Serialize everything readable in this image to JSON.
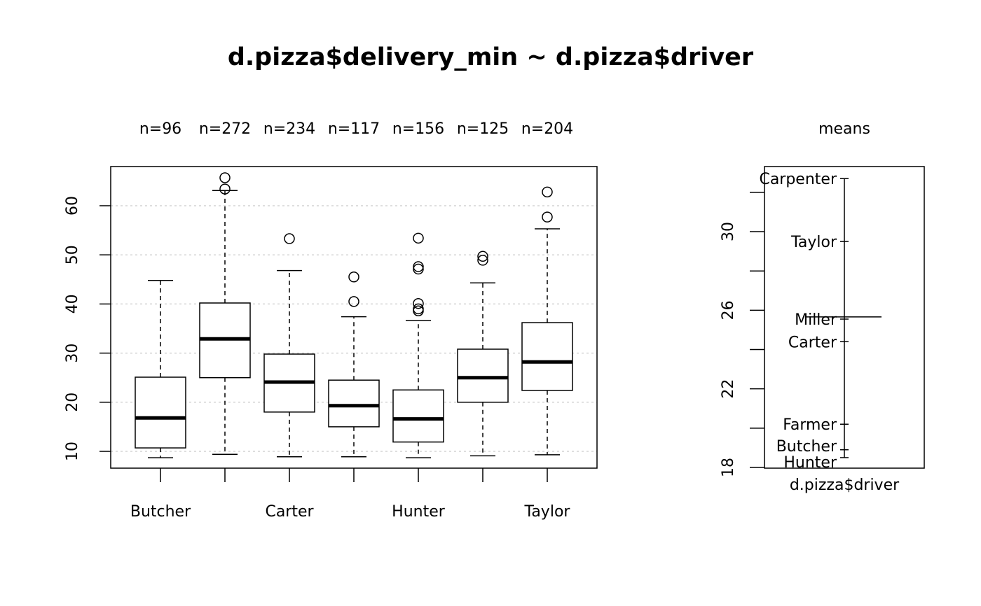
{
  "chart_data": [
    {
      "type": "boxplot",
      "title": "d.pizza$delivery_min ~ d.pizza$driver",
      "xlabel": "",
      "ylabel": "",
      "ylim": [
        6.5,
        68
      ],
      "yticks": [
        10,
        20,
        30,
        40,
        50,
        60
      ],
      "grid": "horizontal dotted",
      "categories": [
        "Butcher",
        "Carpenter",
        "Carter",
        "Farmer",
        "Hunter",
        "Miller",
        "Taylor"
      ],
      "visible_xtick_labels": [
        "Butcher",
        "Carter",
        "Hunter",
        "Taylor"
      ],
      "counts": [
        "n=96",
        "n=272",
        "n=234",
        "n=117",
        "n=156",
        "n=125",
        "n=204"
      ],
      "boxes": [
        {
          "name": "Butcher",
          "whisker_low": 8.7,
          "q1": 10.7,
          "median": 16.8,
          "q3": 25.1,
          "whisker_high": 44.8,
          "outliers": []
        },
        {
          "name": "Carpenter",
          "whisker_low": 9.4,
          "q1": 25.0,
          "median": 32.9,
          "q3": 40.2,
          "whisker_high": 63.1,
          "outliers": [
            65.7,
            63.4
          ]
        },
        {
          "name": "Carter",
          "whisker_low": 8.9,
          "q1": 18.0,
          "median": 24.1,
          "q3": 29.8,
          "whisker_high": 46.8,
          "outliers": [
            53.3
          ]
        },
        {
          "name": "Farmer",
          "whisker_low": 8.9,
          "q1": 15.0,
          "median": 19.3,
          "q3": 24.5,
          "whisker_high": 37.4,
          "outliers": [
            45.5,
            40.5
          ]
        },
        {
          "name": "Hunter",
          "whisker_low": 8.7,
          "q1": 11.9,
          "median": 16.6,
          "q3": 22.5,
          "whisker_high": 36.6,
          "outliers": [
            53.4,
            47.6,
            47.1,
            40.1,
            39.0,
            38.6
          ]
        },
        {
          "name": "Miller",
          "whisker_low": 9.1,
          "q1": 20.0,
          "median": 25.0,
          "q3": 30.8,
          "whisker_high": 44.3,
          "outliers": [
            49.7,
            48.9
          ]
        },
        {
          "name": "Taylor",
          "whisker_low": 9.3,
          "q1": 22.4,
          "median": 28.2,
          "q3": 36.2,
          "whisker_high": 55.3,
          "outliers": [
            62.8,
            57.7
          ]
        }
      ]
    },
    {
      "type": "means",
      "title": "means",
      "xlabel": "d.pizza$driver",
      "ylim": [
        18,
        33.3
      ],
      "yticks": [
        18,
        20,
        22,
        24,
        26,
        28,
        30,
        32
      ],
      "ytick_labels": [
        "18",
        "22",
        "26",
        "30"
      ],
      "grand_mean": 25.66,
      "means": [
        {
          "name": "Carpenter",
          "value": 32.7
        },
        {
          "name": "Taylor",
          "value": 29.5
        },
        {
          "name": "Miller",
          "value": 25.55
        },
        {
          "name": "Carter",
          "value": 24.4
        },
        {
          "name": "Farmer",
          "value": 20.2
        },
        {
          "name": "Butcher",
          "value": 18.9
        },
        {
          "name": "Hunter",
          "value": 18.5
        }
      ]
    }
  ]
}
